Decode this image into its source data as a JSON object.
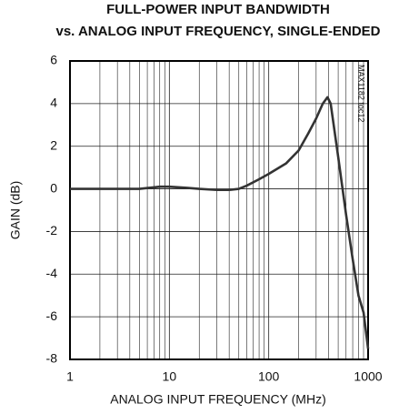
{
  "chart_data": {
    "type": "line",
    "title": "FULL-POWER INPUT BANDWIDTH",
    "subtitle": "vs. ANALOG INPUT FREQUENCY, SINGLE-ENDED",
    "x_label": "ANALOG INPUT FREQUENCY (MHz)",
    "y_label": "GAIN (dB)",
    "annotation": "MAX1182 toc12",
    "x_log": true,
    "grid": true,
    "xlim": [
      1,
      1000
    ],
    "ylim": [
      -8,
      6
    ],
    "xticks": [
      1,
      10,
      100,
      1000
    ],
    "yticks": [
      -8,
      -6,
      -4,
      -2,
      0,
      2,
      4,
      6
    ],
    "series": [
      {
        "color": "#333333",
        "x": [
          1,
          2,
          5,
          8,
          10,
          15,
          20,
          30,
          40,
          50,
          60,
          80,
          100,
          150,
          200,
          250,
          300,
          350,
          390,
          420,
          500,
          600,
          700,
          800,
          900,
          1000
        ],
        "values": [
          0.0,
          0.0,
          0.0,
          0.1,
          0.1,
          0.05,
          0.0,
          -0.05,
          -0.05,
          0.0,
          0.15,
          0.45,
          0.7,
          1.2,
          1.8,
          2.6,
          3.3,
          4.0,
          4.3,
          4.0,
          1.5,
          -1.2,
          -3.3,
          -5.0,
          -5.8,
          -7.5
        ]
      }
    ]
  }
}
